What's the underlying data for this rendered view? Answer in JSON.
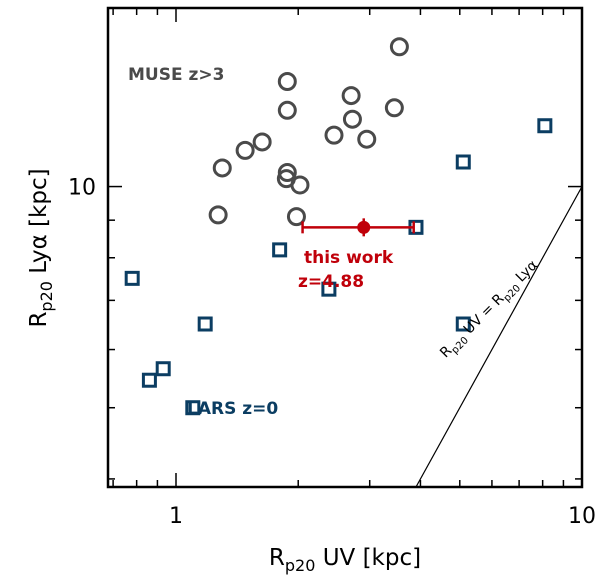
{
  "chart_data": {
    "type": "scatter",
    "x_scale": "log",
    "y_scale": "log",
    "xlim": [
      0.68,
      10.0
    ],
    "ylim": [
      3.9,
      17.5
    ],
    "xlabel": {
      "base": "R",
      "sub": "p20",
      "rest": " UV [kpc]"
    },
    "ylabel": {
      "base": "R",
      "sub": "p20",
      "rest": " Lyα [kpc]"
    },
    "x_ticks": [
      {
        "value": 1,
        "label": "1"
      },
      {
        "value": 10,
        "label": "10"
      }
    ],
    "y_ticks": [
      {
        "value": 10,
        "label": "10"
      }
    ],
    "series": [
      {
        "name": "MUSE z>3",
        "marker": "circle",
        "color": "#4a4a4a",
        "points": [
          {
            "x": 3.55,
            "y": 15.5
          },
          {
            "x": 1.88,
            "y": 13.9
          },
          {
            "x": 2.7,
            "y": 13.3
          },
          {
            "x": 1.88,
            "y": 12.7
          },
          {
            "x": 3.45,
            "y": 12.8
          },
          {
            "x": 2.72,
            "y": 12.35
          },
          {
            "x": 2.45,
            "y": 11.75
          },
          {
            "x": 2.95,
            "y": 11.6
          },
          {
            "x": 1.63,
            "y": 11.5
          },
          {
            "x": 1.48,
            "y": 11.2
          },
          {
            "x": 1.3,
            "y": 10.6
          },
          {
            "x": 1.88,
            "y": 10.45
          },
          {
            "x": 1.87,
            "y": 10.25
          },
          {
            "x": 2.02,
            "y": 10.05
          },
          {
            "x": 1.27,
            "y": 9.15
          },
          {
            "x": 1.98,
            "y": 9.1
          }
        ]
      },
      {
        "name": "LARS z=0",
        "marker": "square",
        "color": "#0b3d62",
        "points": [
          {
            "x": 8.1,
            "y": 12.1
          },
          {
            "x": 5.1,
            "y": 10.8
          },
          {
            "x": 3.9,
            "y": 8.8
          },
          {
            "x": 1.8,
            "y": 8.2
          },
          {
            "x": 0.78,
            "y": 7.5
          },
          {
            "x": 2.38,
            "y": 7.25
          },
          {
            "x": 1.18,
            "y": 6.5
          },
          {
            "x": 5.1,
            "y": 6.5
          },
          {
            "x": 0.93,
            "y": 5.65
          },
          {
            "x": 0.86,
            "y": 5.45
          },
          {
            "x": 1.1,
            "y": 5.0
          }
        ]
      },
      {
        "name": "this work",
        "marker": "filled-circle",
        "color": "#c0000a",
        "points": [
          {
            "x": 2.9,
            "y": 8.8,
            "x_err_low": 2.05,
            "x_err_high": 3.85
          }
        ]
      }
    ],
    "reference_line": {
      "label": {
        "a_base": "R",
        "a_sub": "p20",
        "a_rest": " UV = ",
        "b_base": "R",
        "b_sub": "p20",
        "b_rest": " Lyα"
      }
    },
    "annotations": [
      {
        "text": "MUSE z>3",
        "color": "#4a4a4a"
      },
      {
        "text": "LARS z=0",
        "color": "#0b3d62"
      },
      {
        "text": "this work",
        "color": "#c0000a"
      },
      {
        "text": "z=4.88",
        "color": "#c0000a"
      }
    ]
  }
}
